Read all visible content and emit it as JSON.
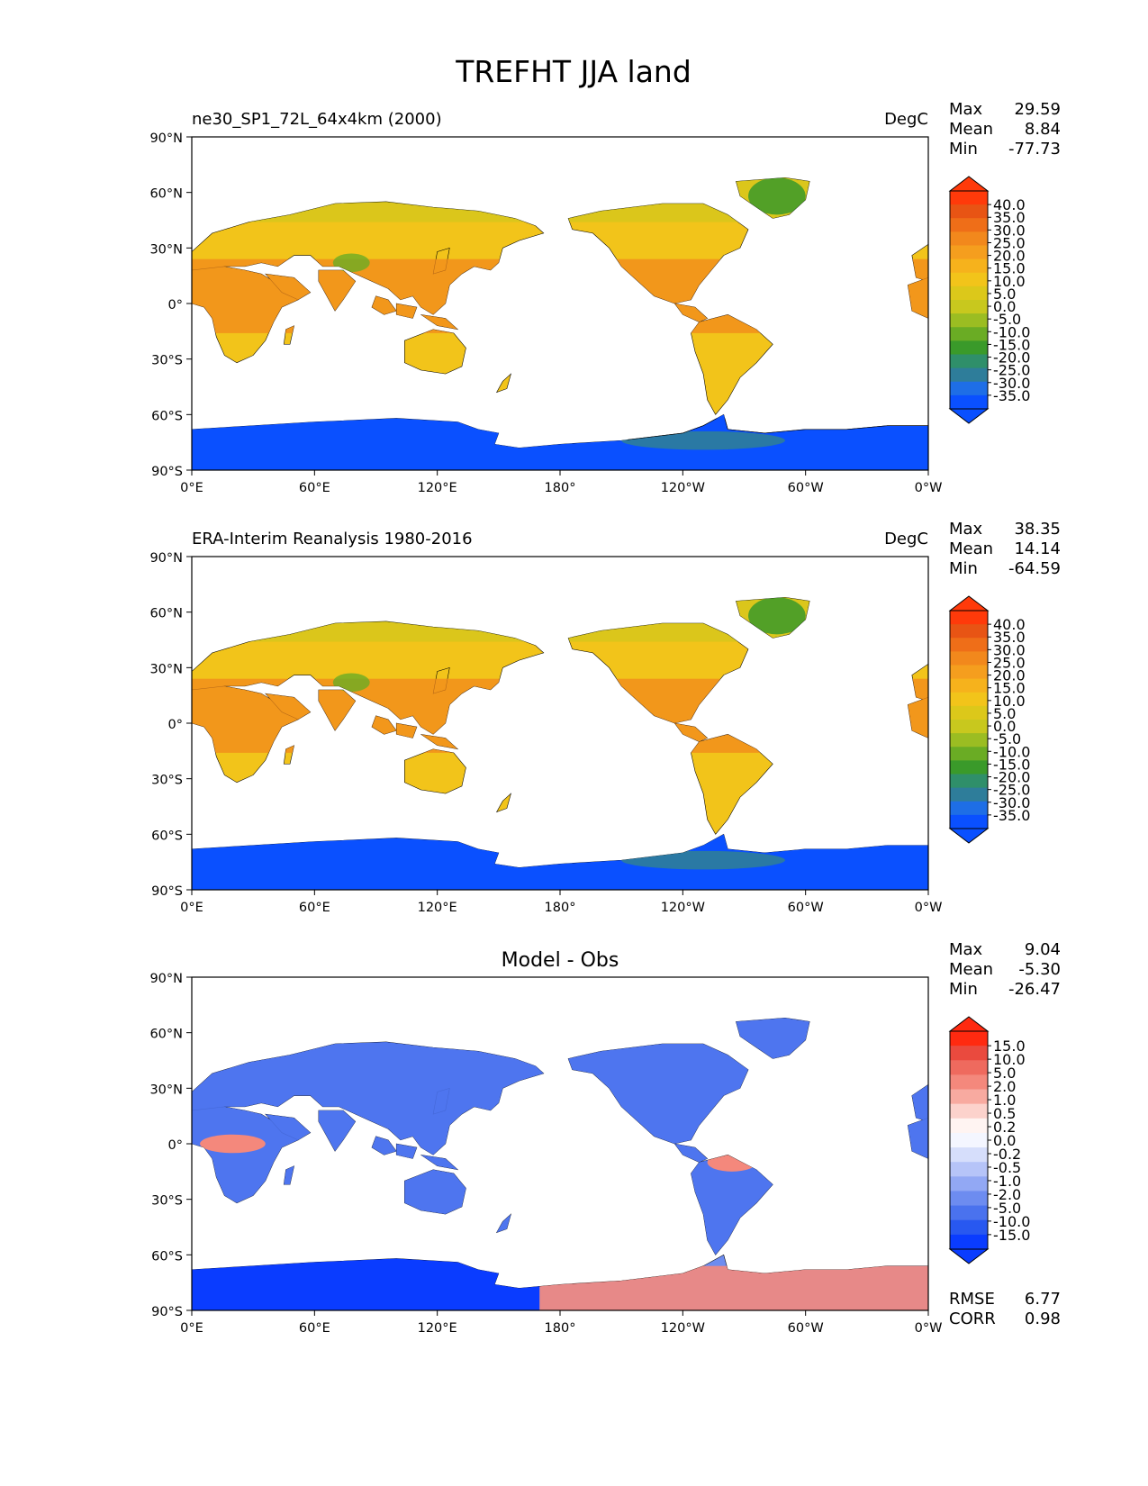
{
  "figure_title": "TREFHT JJA land",
  "colors": {
    "ocean": "#ffffff",
    "coast": "#000000",
    "abs_palette": [
      "#0a50ff",
      "#1e6ee6",
      "#2e7d9a",
      "#2f8f6a",
      "#3a9a2a",
      "#6aac24",
      "#9bbd22",
      "#c8c81e",
      "#dcc81a",
      "#f2c41a",
      "#f6b21c",
      "#f59e1e",
      "#f2881c",
      "#ef6e18",
      "#e85414",
      "#ff3a0a"
    ],
    "diff_palette": [
      "#0a3cff",
      "#2858f0",
      "#4a72ee",
      "#6d8cf0",
      "#92a8f4",
      "#b6c4f8",
      "#d6defb",
      "#f4f6ff",
      "#fff4f2",
      "#fcd2cc",
      "#f8aaa0",
      "#f4887c",
      "#ef6a5e",
      "#ea4a3e",
      "#ff2a10"
    ]
  },
  "panels": [
    {
      "id": "test",
      "left_title": "ne30_SP1_72L_64x4km (2000)",
      "center_title": "",
      "right_title": "DegC",
      "stats": {
        "max_label": "Max",
        "max": "29.59",
        "mean_label": "Mean",
        "mean": "8.84",
        "min_label": "Min",
        "min": "-77.73"
      },
      "colorbar_ticks": [
        "40.0",
        "35.0",
        "30.0",
        "25.0",
        "20.0",
        "15.0",
        "10.0",
        "5.0",
        "0.0",
        "-5.0",
        "-10.0",
        "-15.0",
        "-20.0",
        "-25.0",
        "-30.0",
        "-35.0"
      ],
      "palette": "abs",
      "extra_stats": null
    },
    {
      "id": "ref",
      "left_title": "ERA-Interim Reanalysis 1980-2016",
      "center_title": "",
      "right_title": "DegC",
      "stats": {
        "max_label": "Max",
        "max": "38.35",
        "mean_label": "Mean",
        "mean": "14.14",
        "min_label": "Min",
        "min": "-64.59"
      },
      "colorbar_ticks": [
        "40.0",
        "35.0",
        "30.0",
        "25.0",
        "20.0",
        "15.0",
        "10.0",
        "5.0",
        "0.0",
        "-5.0",
        "-10.0",
        "-15.0",
        "-20.0",
        "-25.0",
        "-30.0",
        "-35.0"
      ],
      "palette": "abs",
      "extra_stats": null
    },
    {
      "id": "diff",
      "left_title": "",
      "center_title": "Model - Obs",
      "right_title": "",
      "stats": {
        "max_label": "Max",
        "max": "9.04",
        "mean_label": "Mean",
        "mean": "-5.30",
        "min_label": "Min",
        "min": "-26.47"
      },
      "colorbar_ticks": [
        "15.0",
        "10.0",
        "5.0",
        "2.0",
        "1.0",
        "0.5",
        "0.2",
        "0.0",
        "-0.2",
        "-0.5",
        "-1.0",
        "-2.0",
        "-5.0",
        "-10.0",
        "-15.0"
      ],
      "palette": "diff",
      "extra_stats": {
        "rmse_label": "RMSE",
        "rmse": "6.77",
        "corr_label": "CORR",
        "corr": "0.98"
      }
    }
  ],
  "axes": {
    "lat_ticks": [
      "90°N",
      "60°N",
      "30°N",
      "0°",
      "30°S",
      "60°S",
      "90°S"
    ],
    "lon_ticks": [
      "0°E",
      "60°E",
      "120°E",
      "180°",
      "120°W",
      "60°W",
      "0°W"
    ]
  }
}
